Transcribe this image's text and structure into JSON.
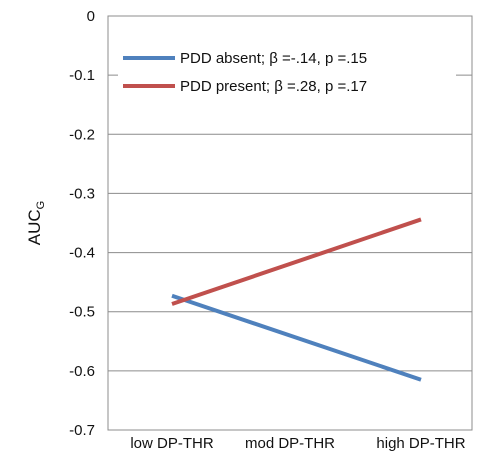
{
  "chart_data": {
    "type": "line",
    "title": "",
    "xlabel": "",
    "ylabel": "AUC",
    "ylabel_subscript": "G",
    "categories": [
      "low DP-THR",
      "mod DP-THR",
      "high DP-THR"
    ],
    "series": [
      {
        "name": "PDD absent; β =-.14,  p =.15",
        "color": "#4f81bd",
        "values": [
          -0.473,
          null,
          -0.615
        ]
      },
      {
        "name": "PDD present; β =.28,  p =.17",
        "color": "#c0504d",
        "values": [
          -0.487,
          null,
          -0.344
        ]
      }
    ],
    "ylim": [
      -0.7,
      0
    ],
    "yticks": [
      0,
      -0.1,
      -0.2,
      -0.3,
      -0.4,
      -0.5,
      -0.6,
      -0.7
    ],
    "ytick_labels": [
      "0",
      "-0.1",
      "-0.2",
      "-0.3",
      "-0.4",
      "-0.5",
      "-0.6",
      "-0.7"
    ],
    "grid": true,
    "legend_position": "top"
  },
  "colors": {
    "grid": "#8c8c8c",
    "axis": "#8c8c8c"
  }
}
